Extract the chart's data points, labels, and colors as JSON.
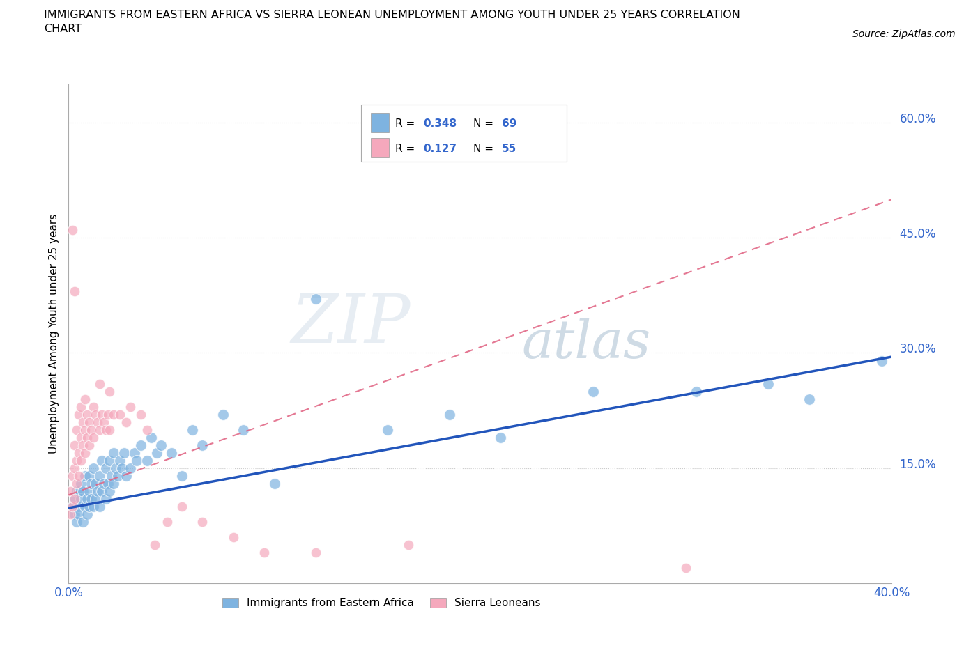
{
  "title": "IMMIGRANTS FROM EASTERN AFRICA VS SIERRA LEONEAN UNEMPLOYMENT AMONG YOUTH UNDER 25 YEARS CORRELATION\nCHART",
  "source": "Source: ZipAtlas.com",
  "ylabel": "Unemployment Among Youth under 25 years",
  "xlim": [
    0.0,
    0.4
  ],
  "ylim": [
    0.0,
    0.65
  ],
  "ytick_positions": [
    0.15,
    0.3,
    0.45,
    0.6
  ],
  "ytick_labels": [
    "15.0%",
    "30.0%",
    "45.0%",
    "60.0%"
  ],
  "r_blue": 0.348,
  "n_blue": 69,
  "r_pink": 0.127,
  "n_pink": 55,
  "blue_color": "#7EB3E0",
  "pink_color": "#F5A8BC",
  "trend_blue_color": "#2255BB",
  "trend_pink_color": "#E06080",
  "legend_blue_label": "Immigrants from Eastern Africa",
  "legend_pink_label": "Sierra Leoneans",
  "watermark_zip": "ZIP",
  "watermark_atlas": "atlas",
  "blue_points_x": [
    0.002,
    0.003,
    0.003,
    0.004,
    0.004,
    0.005,
    0.005,
    0.005,
    0.006,
    0.006,
    0.007,
    0.007,
    0.008,
    0.008,
    0.009,
    0.009,
    0.01,
    0.01,
    0.01,
    0.011,
    0.011,
    0.012,
    0.012,
    0.013,
    0.013,
    0.014,
    0.015,
    0.015,
    0.016,
    0.016,
    0.017,
    0.018,
    0.018,
    0.019,
    0.02,
    0.02,
    0.021,
    0.022,
    0.022,
    0.023,
    0.024,
    0.025,
    0.026,
    0.027,
    0.028,
    0.03,
    0.032,
    0.033,
    0.035,
    0.038,
    0.04,
    0.043,
    0.045,
    0.05,
    0.055,
    0.06,
    0.065,
    0.075,
    0.085,
    0.1,
    0.12,
    0.155,
    0.185,
    0.21,
    0.255,
    0.305,
    0.34,
    0.36,
    0.395
  ],
  "blue_points_y": [
    0.1,
    0.09,
    0.11,
    0.12,
    0.08,
    0.1,
    0.12,
    0.09,
    0.11,
    0.13,
    0.08,
    0.12,
    0.1,
    0.14,
    0.09,
    0.11,
    0.12,
    0.1,
    0.14,
    0.11,
    0.13,
    0.1,
    0.15,
    0.11,
    0.13,
    0.12,
    0.14,
    0.1,
    0.12,
    0.16,
    0.13,
    0.11,
    0.15,
    0.13,
    0.12,
    0.16,
    0.14,
    0.13,
    0.17,
    0.15,
    0.14,
    0.16,
    0.15,
    0.17,
    0.14,
    0.15,
    0.17,
    0.16,
    0.18,
    0.16,
    0.19,
    0.17,
    0.18,
    0.17,
    0.14,
    0.2,
    0.18,
    0.22,
    0.2,
    0.13,
    0.37,
    0.2,
    0.22,
    0.19,
    0.25,
    0.25,
    0.26,
    0.24,
    0.29
  ],
  "pink_points_x": [
    0.001,
    0.001,
    0.002,
    0.002,
    0.003,
    0.003,
    0.003,
    0.004,
    0.004,
    0.004,
    0.005,
    0.005,
    0.005,
    0.006,
    0.006,
    0.006,
    0.007,
    0.007,
    0.008,
    0.008,
    0.008,
    0.009,
    0.009,
    0.01,
    0.01,
    0.011,
    0.012,
    0.012,
    0.013,
    0.014,
    0.015,
    0.016,
    0.017,
    0.018,
    0.019,
    0.02,
    0.022,
    0.025,
    0.028,
    0.03,
    0.035,
    0.038,
    0.042,
    0.048,
    0.055,
    0.065,
    0.08,
    0.095,
    0.12,
    0.165,
    0.002,
    0.003,
    0.015,
    0.02,
    0.3
  ],
  "pink_points_y": [
    0.12,
    0.09,
    0.14,
    0.1,
    0.11,
    0.15,
    0.18,
    0.13,
    0.16,
    0.2,
    0.14,
    0.17,
    0.22,
    0.16,
    0.19,
    0.23,
    0.18,
    0.21,
    0.17,
    0.2,
    0.24,
    0.19,
    0.22,
    0.18,
    0.21,
    0.2,
    0.19,
    0.23,
    0.22,
    0.21,
    0.2,
    0.22,
    0.21,
    0.2,
    0.22,
    0.2,
    0.22,
    0.22,
    0.21,
    0.23,
    0.22,
    0.2,
    0.05,
    0.08,
    0.1,
    0.08,
    0.06,
    0.04,
    0.04,
    0.05,
    0.46,
    0.38,
    0.26,
    0.25,
    0.02
  ],
  "blue_trend_x": [
    0.0,
    0.4
  ],
  "blue_trend_y": [
    0.098,
    0.295
  ],
  "pink_trend_x": [
    0.0,
    0.4
  ],
  "pink_trend_y": [
    0.115,
    0.5
  ]
}
